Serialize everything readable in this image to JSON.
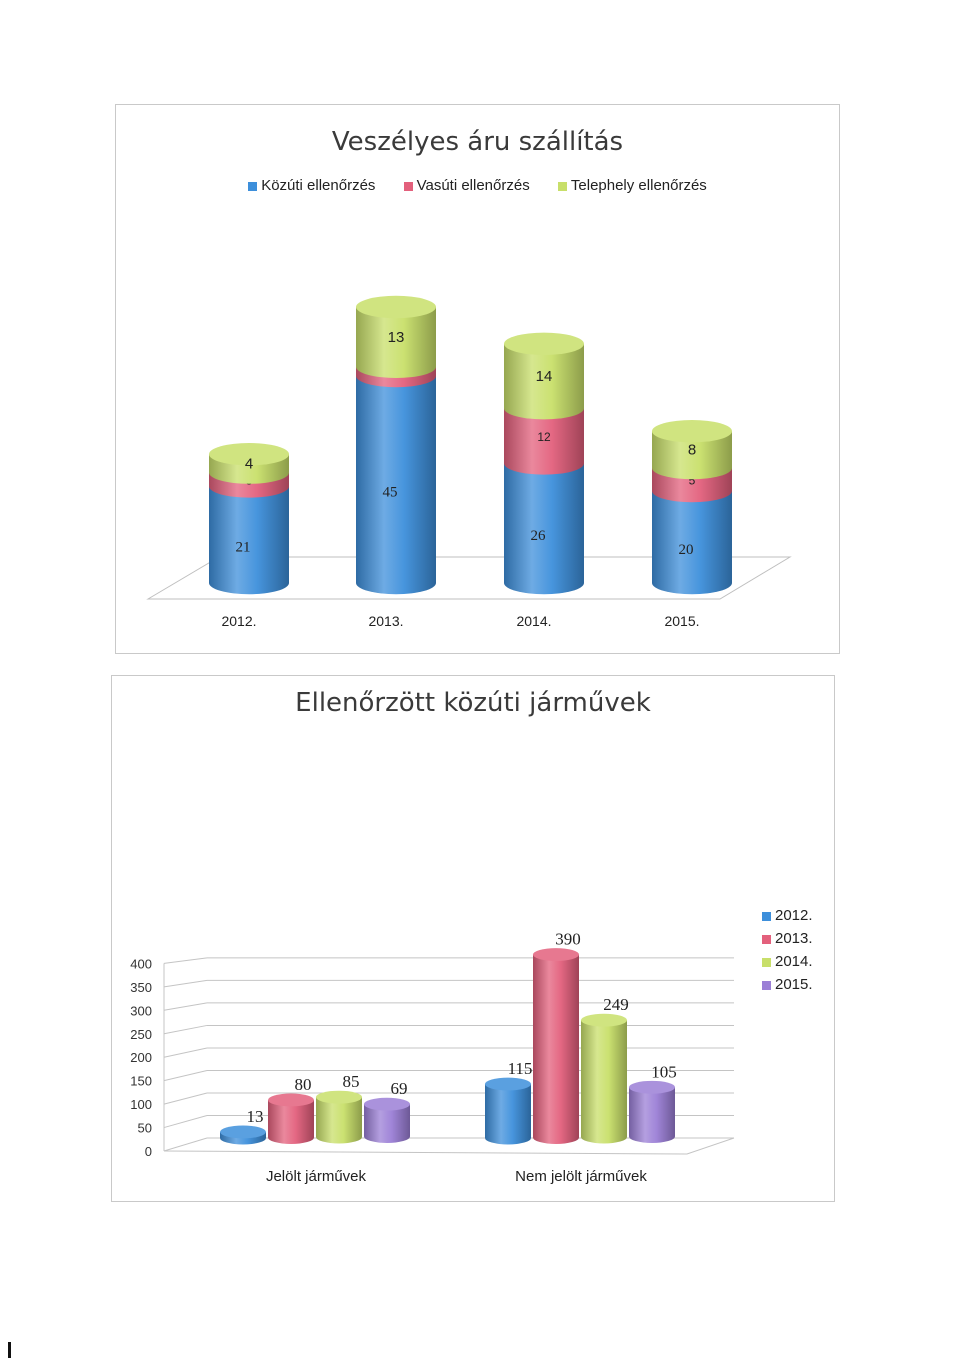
{
  "chart_data": [
    {
      "type": "bar",
      "stacked": true,
      "three_d": "cylinder",
      "title": "Veszélyes áru szállítás",
      "categories": [
        "2012.",
        "2013.",
        "2014.",
        "2015."
      ],
      "series": [
        {
          "name": "Közúti ellenőrzés",
          "values": [
            21,
            45,
            26,
            20
          ],
          "color": "#3d8fdb"
        },
        {
          "name": "Vasúti ellenőrzés",
          "values": [
            3,
            2,
            12,
            5
          ],
          "color": "#e3607c"
        },
        {
          "name": "Telephely ellenőrzés",
          "values": [
            4,
            13,
            14,
            8
          ],
          "color": "#c8df6a"
        }
      ],
      "legend": "top",
      "grid": false
    },
    {
      "type": "bar",
      "three_d": "cylinder",
      "title": "Ellenőrzött közúti járművek",
      "categories": [
        "Jelölt járművek",
        "Nem jelölt járművek"
      ],
      "series": [
        {
          "name": "2012.",
          "values": [
            13,
            115
          ],
          "color": "#3d8fdb"
        },
        {
          "name": "2013.",
          "values": [
            80,
            390
          ],
          "color": "#e3607c"
        },
        {
          "name": "2014.",
          "values": [
            85,
            249
          ],
          "color": "#c8df6a"
        },
        {
          "name": "2015.",
          "values": [
            69,
            105
          ],
          "color": "#9b7fd6"
        }
      ],
      "yticks": [
        0,
        50,
        100,
        150,
        200,
        250,
        300,
        350,
        400
      ],
      "ylim": [
        0,
        400
      ],
      "legend": "right",
      "grid": true
    }
  ]
}
